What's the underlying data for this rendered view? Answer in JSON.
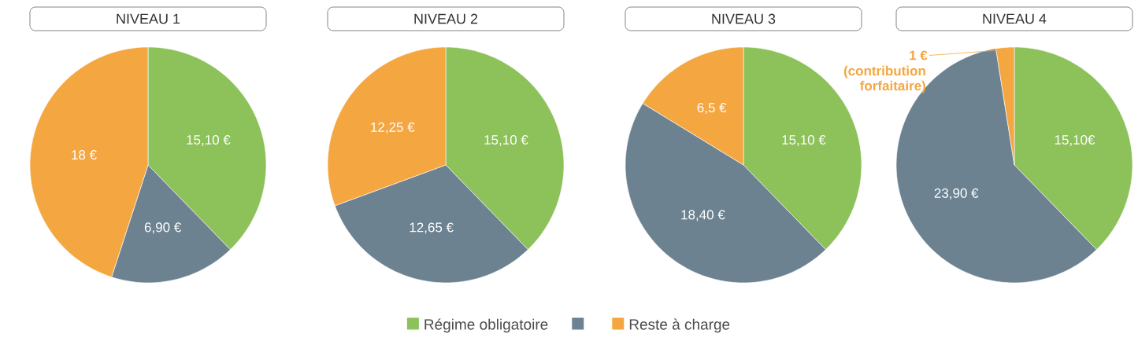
{
  "chart_data": [
    {
      "type": "pie",
      "title": "NIVEAU 1",
      "categories": [
        "Régime obligatoire",
        null,
        "Reste à charge"
      ],
      "values": [
        15.1,
        6.9,
        18
      ],
      "colors": [
        "#8dc15a",
        "#6c8291",
        "#f4a640"
      ],
      "value_labels": [
        "15,10 €",
        "6,90 €",
        "18 €"
      ],
      "legend": "bottom"
    },
    {
      "type": "pie",
      "title": "NIVEAU 2",
      "values": [
        15.1,
        12.65,
        12.25
      ],
      "colors": [
        "#8dc15a",
        "#6c8291",
        "#f4a640"
      ],
      "value_labels": [
        "15,10 €",
        "12,65 €",
        "12,25 €"
      ]
    },
    {
      "type": "pie",
      "title": "NIVEAU 3",
      "values": [
        15.1,
        18.4,
        6.5
      ],
      "colors": [
        "#8dc15a",
        "#6c8291",
        "#f4a640"
      ],
      "value_labels": [
        "15,10 €",
        "18,40 €",
        "6,5 €"
      ]
    },
    {
      "type": "pie",
      "title": "NIVEAU 4",
      "values": [
        15.1,
        23.9,
        1
      ],
      "colors": [
        "#8dc15a",
        "#6c8291",
        "#f4a640"
      ],
      "value_labels": [
        "15,10€",
        "23,90 €",
        "1 €"
      ],
      "annotations": [
        "(contribution forfaitaire)"
      ]
    }
  ]
}
